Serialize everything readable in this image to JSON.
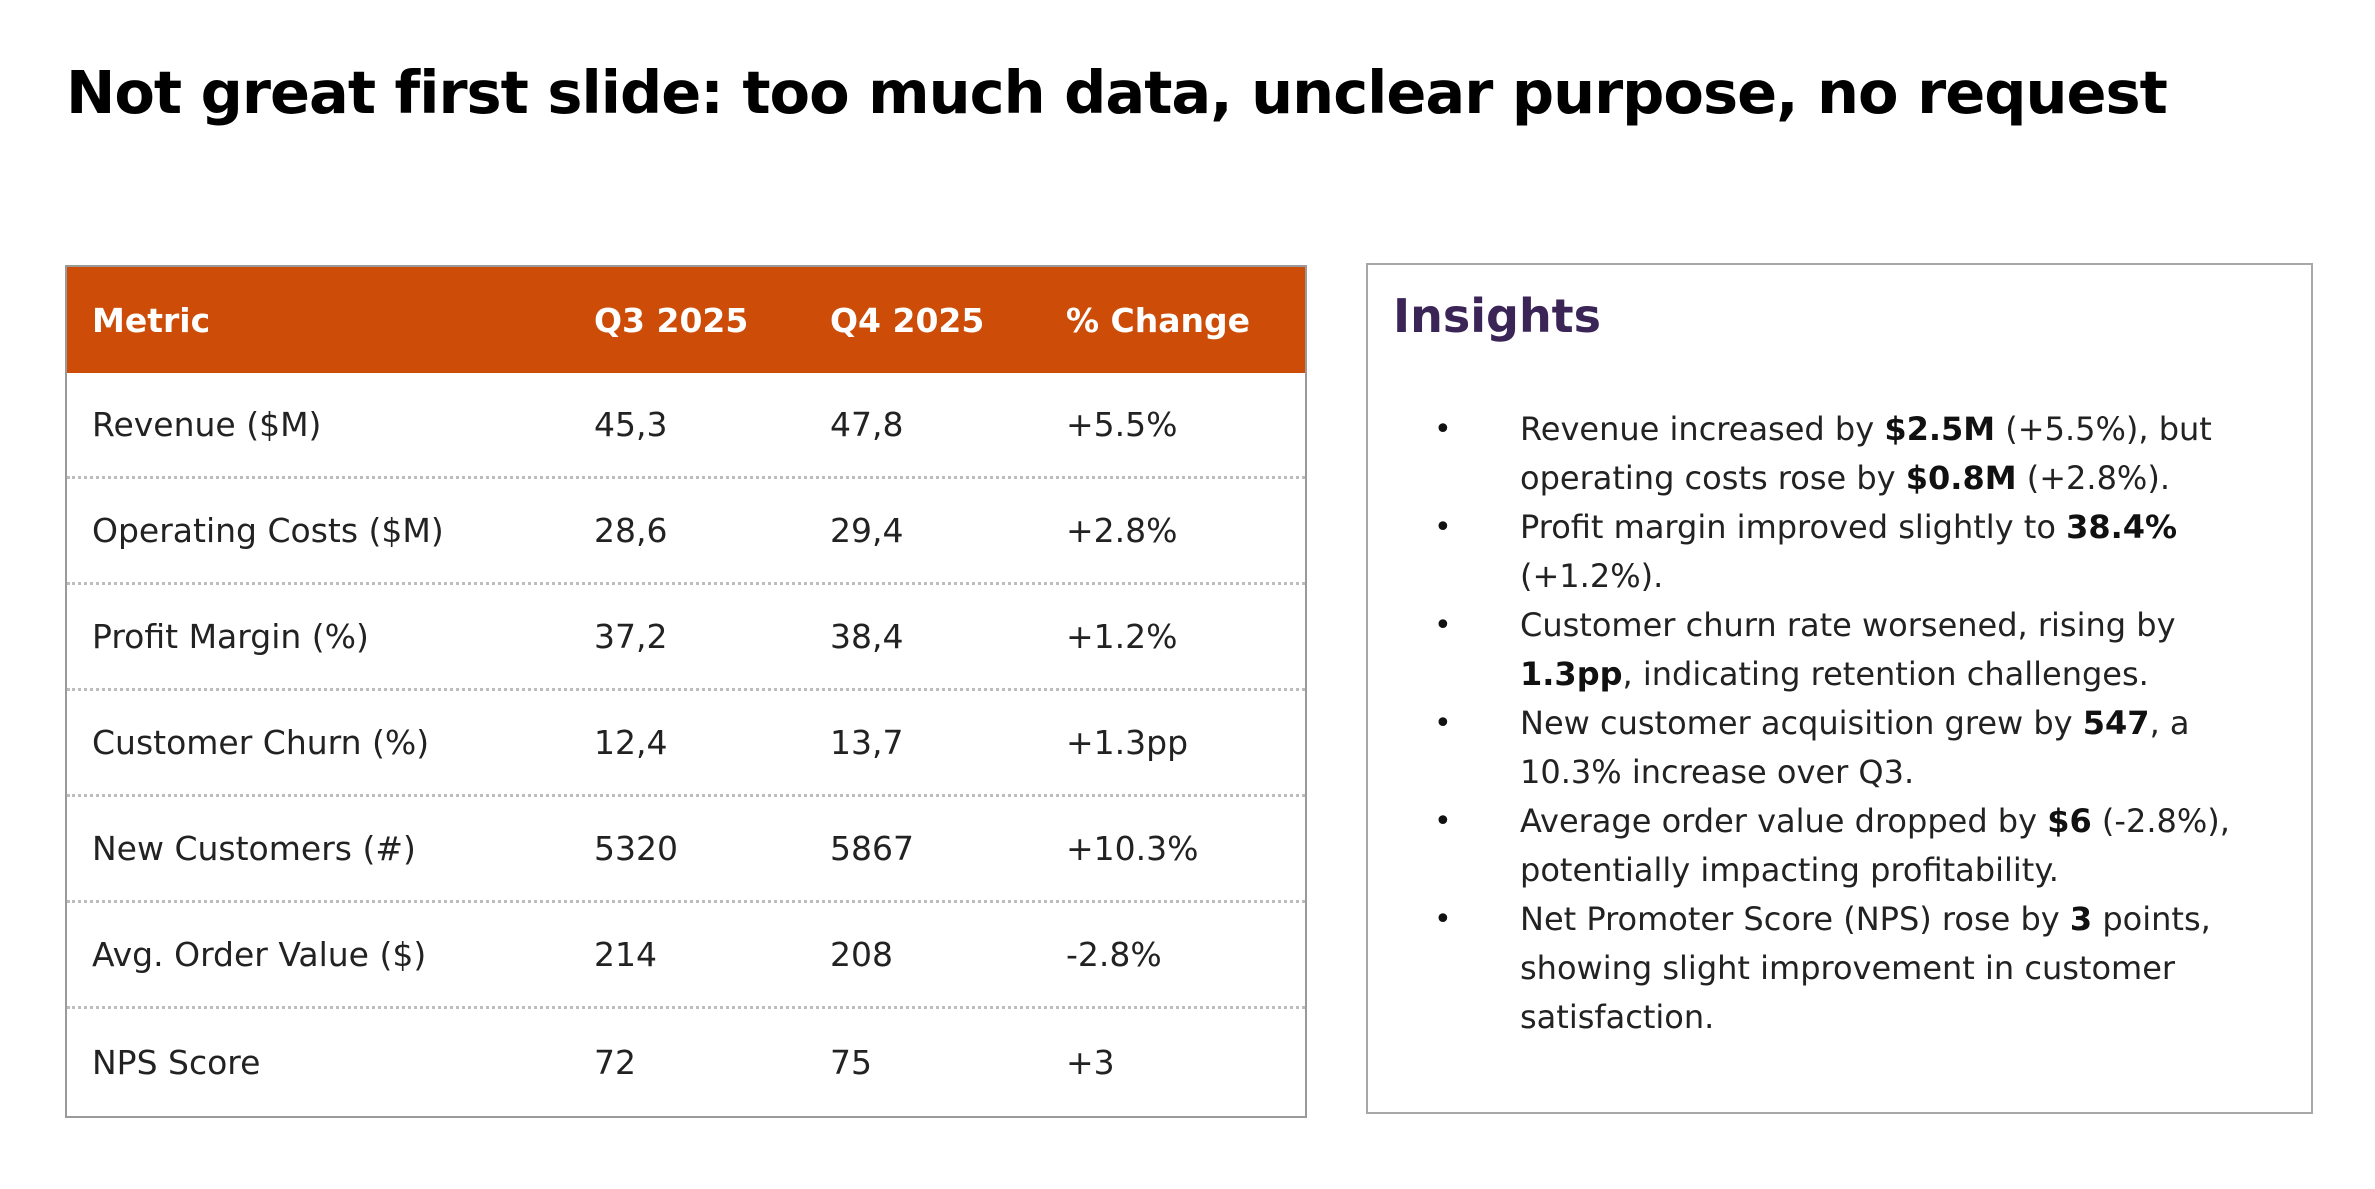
{
  "slide": {
    "title": "Not great first slide: too much data, unclear purpose, no request"
  },
  "table": {
    "headers": {
      "metric": "Metric",
      "q3": "Q3 2025",
      "q4": "Q4 2025",
      "change": "% Change"
    },
    "rows": [
      {
        "metric": "Revenue ($M)",
        "q3": "45,3",
        "q4": "47,8",
        "change": "+5.5%"
      },
      {
        "metric": "Operating Costs ($M)",
        "q3": "28,6",
        "q4": "29,4",
        "change": "+2.8%"
      },
      {
        "metric": "Profit Margin (%)",
        "q3": "37,2",
        "q4": "38,4",
        "change": "+1.2%"
      },
      {
        "metric": "Customer Churn (%)",
        "q3": "12,4",
        "q4": "13,7",
        "change": "+1.3pp"
      },
      {
        "metric": "New Customers (#)",
        "q3": "5320",
        "q4": "5867",
        "change": "+10.3%"
      },
      {
        "metric": "Avg. Order Value ($)",
        "q3": "214",
        "q4": "208",
        "change": "-2.8%"
      },
      {
        "metric": "NPS Score",
        "q3": "72",
        "q4": "75",
        "change": "+3"
      }
    ],
    "header_color": "#cc4c08"
  },
  "insights": {
    "title": "Insights",
    "title_color": "#3b2557",
    "bullet": "•",
    "items": [
      {
        "a": "Revenue increased by ",
        "b": "$2.5M",
        "c": " (+5.5%), but operating costs rose by ",
        "d": "$0.8M",
        "e": " (+2.8%)."
      },
      {
        "a": "Profit margin improved slightly to ",
        "b": "38.4%",
        "c": " (+1.2%).",
        "d": "",
        "e": ""
      },
      {
        "a": "Customer churn rate worsened, rising by ",
        "b": "1.3pp",
        "c": ", indicating retention challenges.",
        "d": "",
        "e": ""
      },
      {
        "a": "New customer acquisition grew by ",
        "b": "547",
        "c": ", a 10.3% increase over Q3.",
        "d": "",
        "e": ""
      },
      {
        "a": "Average order value dropped by ",
        "b": "$6",
        "c": " (-2.8%), potentially impacting profitability.",
        "d": "",
        "e": ""
      },
      {
        "a": "Net Promoter Score (NPS) rose by ",
        "b": "3",
        "c": " points, showing slight improvement in customer satisfaction.",
        "d": "",
        "e": ""
      }
    ]
  }
}
